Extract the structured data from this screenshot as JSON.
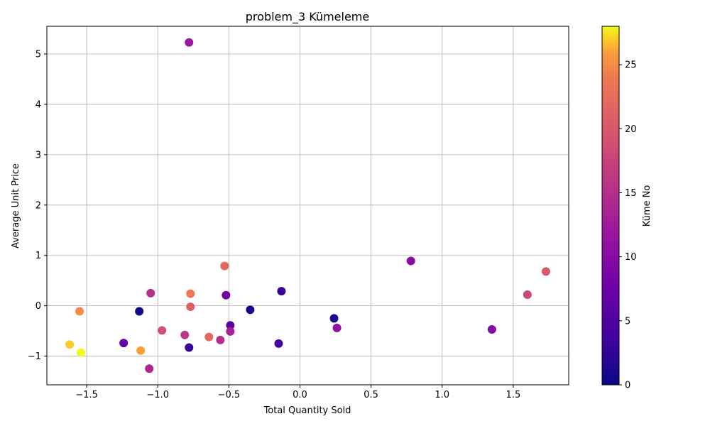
{
  "chart_data": {
    "type": "scatter",
    "title": "problem_3 Kümeleme",
    "xlabel": "Total Quantity Sold",
    "ylabel": "Average Unit Price",
    "xlim": [
      -1.78,
      1.89
    ],
    "ylim": [
      -1.57,
      5.55
    ],
    "xticks": [
      -1.5,
      -1.0,
      -0.5,
      0.0,
      0.5,
      1.0,
      1.5
    ],
    "xtick_labels": [
      "−1.5",
      "−1.0",
      "−0.5",
      "0.0",
      "0.5",
      "1.0",
      "1.5"
    ],
    "yticks": [
      -1,
      0,
      1,
      2,
      3,
      4,
      5
    ],
    "ytick_labels": [
      "−1",
      "0",
      "1",
      "2",
      "3",
      "4",
      "5"
    ],
    "grid": true,
    "colormap": "plasma",
    "colorbar": {
      "label": "Küme No",
      "range": [
        0,
        28
      ],
      "ticks": [
        0,
        5,
        10,
        15,
        20,
        25
      ],
      "tick_labels": [
        "0",
        "5",
        "10",
        "15",
        "20",
        "25"
      ]
    },
    "points": [
      {
        "x": -0.78,
        "y": 5.23,
        "c": 12
      },
      {
        "x": 0.78,
        "y": 0.89,
        "c": 10
      },
      {
        "x": 1.73,
        "y": 0.68,
        "c": 20
      },
      {
        "x": -0.53,
        "y": 0.79,
        "c": 22
      },
      {
        "x": 1.6,
        "y": 0.22,
        "c": 18
      },
      {
        "x": -1.05,
        "y": 0.25,
        "c": 15
      },
      {
        "x": -0.77,
        "y": 0.24,
        "c": 24
      },
      {
        "x": -0.52,
        "y": 0.21,
        "c": 8
      },
      {
        "x": -0.13,
        "y": 0.29,
        "c": 3
      },
      {
        "x": -1.55,
        "y": -0.11,
        "c": 25
      },
      {
        "x": -1.13,
        "y": -0.11,
        "c": 0
      },
      {
        "x": -0.77,
        "y": -0.02,
        "c": 21
      },
      {
        "x": -0.35,
        "y": -0.08,
        "c": 1
      },
      {
        "x": 0.24,
        "y": -0.25,
        "c": 1
      },
      {
        "x": 0.26,
        "y": -0.44,
        "c": 11
      },
      {
        "x": 1.35,
        "y": -0.47,
        "c": 10
      },
      {
        "x": -0.49,
        "y": -0.39,
        "c": 6
      },
      {
        "x": -0.49,
        "y": -0.51,
        "c": 13
      },
      {
        "x": -0.97,
        "y": -0.49,
        "c": 19
      },
      {
        "x": -0.81,
        "y": -0.58,
        "c": 16
      },
      {
        "x": -0.64,
        "y": -0.62,
        "c": 22
      },
      {
        "x": -0.56,
        "y": -0.68,
        "c": 15
      },
      {
        "x": -1.62,
        "y": -0.77,
        "c": 27
      },
      {
        "x": -1.24,
        "y": -0.74,
        "c": 7
      },
      {
        "x": -0.78,
        "y": -0.83,
        "c": 3
      },
      {
        "x": -0.15,
        "y": -0.75,
        "c": 4
      },
      {
        "x": -1.54,
        "y": -0.93,
        "c": 28
      },
      {
        "x": -1.12,
        "y": -0.89,
        "c": 26
      },
      {
        "x": -1.06,
        "y": -1.25,
        "c": 14
      }
    ]
  }
}
